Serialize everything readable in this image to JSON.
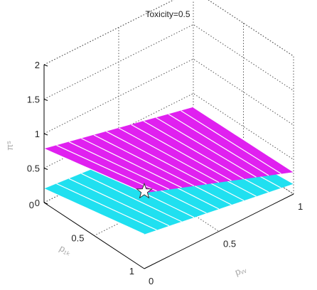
{
  "chart_data": {
    "type": "surface3d",
    "title": "Toxicity=0.5",
    "xlabel": "p₁ₖ",
    "ylabel": "pᵥᵥ",
    "zlabel": "πˢ",
    "xlim": [
      0,
      1
    ],
    "ylim": [
      0,
      1
    ],
    "zlim": [
      0,
      2
    ],
    "x_ticks": [
      "0",
      "0.5",
      "1"
    ],
    "y_ticks": [
      "0",
      "0.5",
      "1"
    ],
    "z_ticks": [
      "0",
      "0.5",
      "1",
      "1.5",
      "2"
    ],
    "grid": true,
    "series": [
      {
        "color": "#e020f0",
        "corner_values": {
          "x0_y0": 0.78,
          "x1_y0": 1.1,
          "x1_y1": 0.32,
          "x0_y1": 0.3
        }
      },
      {
        "color": "#20e0f0",
        "corner_values": {
          "x0_y0": 0.2,
          "x1_y0": 0.5,
          "x1_y1": 0.15,
          "x0_y1": 0.0
        }
      }
    ],
    "marker": {
      "symbol": "star",
      "x": 1,
      "y": 0,
      "z": 1.12
    }
  }
}
